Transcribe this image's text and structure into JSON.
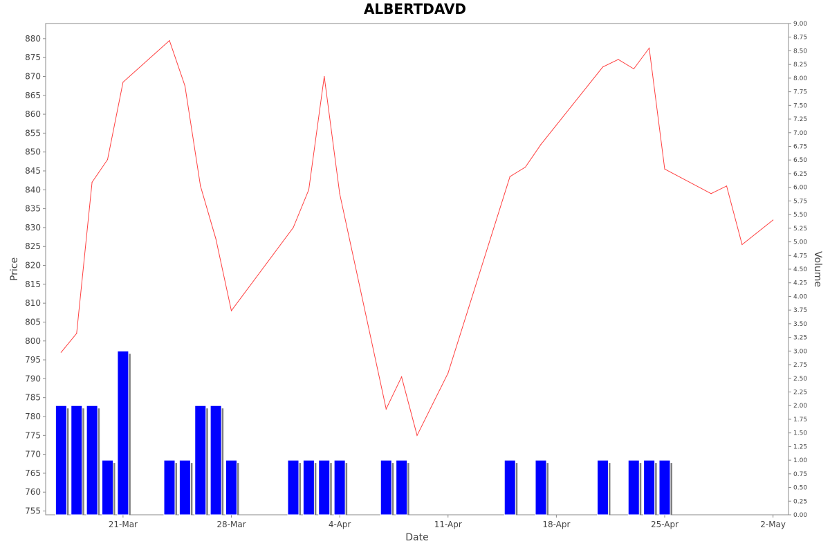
{
  "chart_data": {
    "type": "line",
    "title": "ALBERTDAVD",
    "xlabel": "Date",
    "ylabel": "Price",
    "y2label": "Volume",
    "ylim": [
      754,
      884
    ],
    "y2lim": [
      0,
      9
    ],
    "y_ticks": [
      755,
      760,
      765,
      770,
      775,
      780,
      785,
      790,
      795,
      800,
      805,
      810,
      815,
      820,
      825,
      830,
      835,
      840,
      845,
      850,
      855,
      860,
      865,
      870,
      875,
      880
    ],
    "y2_ticks": [
      "0.00",
      "0.25",
      "0.50",
      "0.75",
      "1.00",
      "1.25",
      "1.50",
      "1.75",
      "2.00",
      "2.25",
      "2.50",
      "2.75",
      "3.00",
      "3.25",
      "3.50",
      "3.75",
      "4.00",
      "4.25",
      "4.50",
      "4.75",
      "5.00",
      "5.25",
      "5.50",
      "5.75",
      "6.00",
      "6.25",
      "6.50",
      "6.75",
      "7.00",
      "7.25",
      "7.50",
      "7.75",
      "8.00",
      "8.25",
      "8.50",
      "8.75",
      "9.00"
    ],
    "x_ticks": [
      {
        "label": "21-Mar",
        "date": "2022-03-21"
      },
      {
        "label": "28-Mar",
        "date": "2022-03-28"
      },
      {
        "label": "4-Apr",
        "date": "2022-04-04"
      },
      {
        "label": "11-Apr",
        "date": "2022-04-11"
      },
      {
        "label": "18-Apr",
        "date": "2022-04-18"
      },
      {
        "label": "25-Apr",
        "date": "2022-04-25"
      },
      {
        "label": "2-May",
        "date": "2022-05-02"
      }
    ],
    "xlim": [
      "2022-03-16",
      "2022-05-03"
    ],
    "grid": false,
    "line_color": "#ff4040",
    "bar_color": "#0000ff",
    "bar_shadow_color": "#808080",
    "price_series": [
      {
        "date": "2022-03-17",
        "price": 797
      },
      {
        "date": "2022-03-18",
        "price": 802
      },
      {
        "date": "2022-03-19",
        "price": 842
      },
      {
        "date": "2022-03-20",
        "price": 848
      },
      {
        "date": "2022-03-21",
        "price": 868.5
      },
      {
        "date": "2022-03-24",
        "price": 879.5
      },
      {
        "date": "2022-03-25",
        "price": 867.5
      },
      {
        "date": "2022-03-26",
        "price": 841
      },
      {
        "date": "2022-03-27",
        "price": 827
      },
      {
        "date": "2022-03-28",
        "price": 808
      },
      {
        "date": "2022-04-01",
        "price": 830
      },
      {
        "date": "2022-04-02",
        "price": 840
      },
      {
        "date": "2022-04-03",
        "price": 870
      },
      {
        "date": "2022-04-04",
        "price": 839
      },
      {
        "date": "2022-04-07",
        "price": 782
      },
      {
        "date": "2022-04-08",
        "price": 790.5
      },
      {
        "date": "2022-04-09",
        "price": 775
      },
      {
        "date": "2022-04-11",
        "price": 791.5
      },
      {
        "date": "2022-04-15",
        "price": 843.5
      },
      {
        "date": "2022-04-16",
        "price": 846
      },
      {
        "date": "2022-04-17",
        "price": 852
      },
      {
        "date": "2022-04-21",
        "price": 872.5
      },
      {
        "date": "2022-04-22",
        "price": 874.5
      },
      {
        "date": "2022-04-23",
        "price": 872
      },
      {
        "date": "2022-04-24",
        "price": 877.5
      },
      {
        "date": "2022-04-25",
        "price": 845.5
      },
      {
        "date": "2022-04-28",
        "price": 839
      },
      {
        "date": "2022-04-29",
        "price": 841
      },
      {
        "date": "2022-04-30",
        "price": 825.5
      },
      {
        "date": "2022-05-02",
        "price": 832
      }
    ],
    "volume_series": [
      {
        "date": "2022-03-17",
        "volume": 2
      },
      {
        "date": "2022-03-18",
        "volume": 2
      },
      {
        "date": "2022-03-19",
        "volume": 2
      },
      {
        "date": "2022-03-20",
        "volume": 1
      },
      {
        "date": "2022-03-21",
        "volume": 3
      },
      {
        "date": "2022-03-24",
        "volume": 1
      },
      {
        "date": "2022-03-25",
        "volume": 1
      },
      {
        "date": "2022-03-26",
        "volume": 2
      },
      {
        "date": "2022-03-27",
        "volume": 2
      },
      {
        "date": "2022-03-28",
        "volume": 1
      },
      {
        "date": "2022-04-01",
        "volume": 1
      },
      {
        "date": "2022-04-02",
        "volume": 1
      },
      {
        "date": "2022-04-03",
        "volume": 1
      },
      {
        "date": "2022-04-04",
        "volume": 1
      },
      {
        "date": "2022-04-07",
        "volume": 1
      },
      {
        "date": "2022-04-08",
        "volume": 1
      },
      {
        "date": "2022-04-15",
        "volume": 1
      },
      {
        "date": "2022-04-17",
        "volume": 1
      },
      {
        "date": "2022-04-21",
        "volume": 1
      },
      {
        "date": "2022-04-23",
        "volume": 1
      },
      {
        "date": "2022-04-24",
        "volume": 1
      },
      {
        "date": "2022-04-25",
        "volume": 1
      }
    ]
  }
}
